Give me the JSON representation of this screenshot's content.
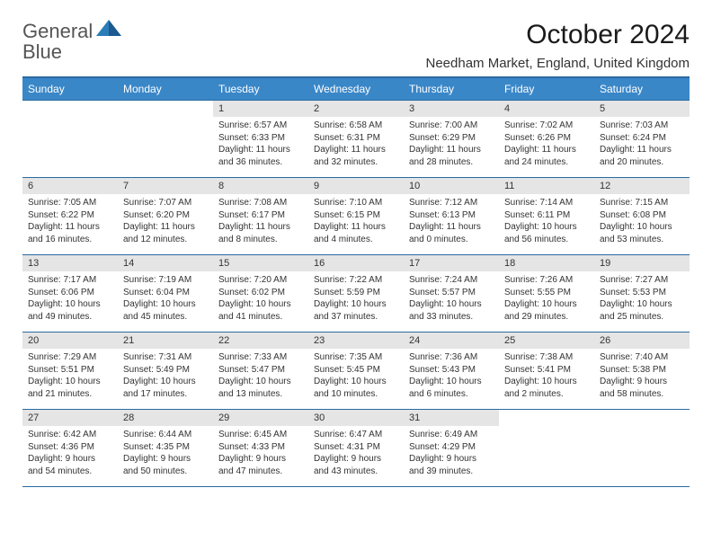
{
  "logo": {
    "word1": "General",
    "word2": "Blue"
  },
  "title": "October 2024",
  "subtitle": "Needham Market, England, United Kingdom",
  "colors": {
    "header_bg": "#3a87c8",
    "header_text": "#ffffff",
    "border": "#2a6aa0",
    "daynum_bg": "#e5e5e5",
    "body_text": "#333333",
    "logo_gray": "#555555",
    "logo_blue": "#2a7db8"
  },
  "dayNames": [
    "Sunday",
    "Monday",
    "Tuesday",
    "Wednesday",
    "Thursday",
    "Friday",
    "Saturday"
  ],
  "weeks": [
    [
      null,
      null,
      {
        "n": "1",
        "sr": "6:57 AM",
        "ss": "6:33 PM",
        "dl": "11 hours and 36 minutes."
      },
      {
        "n": "2",
        "sr": "6:58 AM",
        "ss": "6:31 PM",
        "dl": "11 hours and 32 minutes."
      },
      {
        "n": "3",
        "sr": "7:00 AM",
        "ss": "6:29 PM",
        "dl": "11 hours and 28 minutes."
      },
      {
        "n": "4",
        "sr": "7:02 AM",
        "ss": "6:26 PM",
        "dl": "11 hours and 24 minutes."
      },
      {
        "n": "5",
        "sr": "7:03 AM",
        "ss": "6:24 PM",
        "dl": "11 hours and 20 minutes."
      }
    ],
    [
      {
        "n": "6",
        "sr": "7:05 AM",
        "ss": "6:22 PM",
        "dl": "11 hours and 16 minutes."
      },
      {
        "n": "7",
        "sr": "7:07 AM",
        "ss": "6:20 PM",
        "dl": "11 hours and 12 minutes."
      },
      {
        "n": "8",
        "sr": "7:08 AM",
        "ss": "6:17 PM",
        "dl": "11 hours and 8 minutes."
      },
      {
        "n": "9",
        "sr": "7:10 AM",
        "ss": "6:15 PM",
        "dl": "11 hours and 4 minutes."
      },
      {
        "n": "10",
        "sr": "7:12 AM",
        "ss": "6:13 PM",
        "dl": "11 hours and 0 minutes."
      },
      {
        "n": "11",
        "sr": "7:14 AM",
        "ss": "6:11 PM",
        "dl": "10 hours and 56 minutes."
      },
      {
        "n": "12",
        "sr": "7:15 AM",
        "ss": "6:08 PM",
        "dl": "10 hours and 53 minutes."
      }
    ],
    [
      {
        "n": "13",
        "sr": "7:17 AM",
        "ss": "6:06 PM",
        "dl": "10 hours and 49 minutes."
      },
      {
        "n": "14",
        "sr": "7:19 AM",
        "ss": "6:04 PM",
        "dl": "10 hours and 45 minutes."
      },
      {
        "n": "15",
        "sr": "7:20 AM",
        "ss": "6:02 PM",
        "dl": "10 hours and 41 minutes."
      },
      {
        "n": "16",
        "sr": "7:22 AM",
        "ss": "5:59 PM",
        "dl": "10 hours and 37 minutes."
      },
      {
        "n": "17",
        "sr": "7:24 AM",
        "ss": "5:57 PM",
        "dl": "10 hours and 33 minutes."
      },
      {
        "n": "18",
        "sr": "7:26 AM",
        "ss": "5:55 PM",
        "dl": "10 hours and 29 minutes."
      },
      {
        "n": "19",
        "sr": "7:27 AM",
        "ss": "5:53 PM",
        "dl": "10 hours and 25 minutes."
      }
    ],
    [
      {
        "n": "20",
        "sr": "7:29 AM",
        "ss": "5:51 PM",
        "dl": "10 hours and 21 minutes."
      },
      {
        "n": "21",
        "sr": "7:31 AM",
        "ss": "5:49 PM",
        "dl": "10 hours and 17 minutes."
      },
      {
        "n": "22",
        "sr": "7:33 AM",
        "ss": "5:47 PM",
        "dl": "10 hours and 13 minutes."
      },
      {
        "n": "23",
        "sr": "7:35 AM",
        "ss": "5:45 PM",
        "dl": "10 hours and 10 minutes."
      },
      {
        "n": "24",
        "sr": "7:36 AM",
        "ss": "5:43 PM",
        "dl": "10 hours and 6 minutes."
      },
      {
        "n": "25",
        "sr": "7:38 AM",
        "ss": "5:41 PM",
        "dl": "10 hours and 2 minutes."
      },
      {
        "n": "26",
        "sr": "7:40 AM",
        "ss": "5:38 PM",
        "dl": "9 hours and 58 minutes."
      }
    ],
    [
      {
        "n": "27",
        "sr": "6:42 AM",
        "ss": "4:36 PM",
        "dl": "9 hours and 54 minutes."
      },
      {
        "n": "28",
        "sr": "6:44 AM",
        "ss": "4:35 PM",
        "dl": "9 hours and 50 minutes."
      },
      {
        "n": "29",
        "sr": "6:45 AM",
        "ss": "4:33 PM",
        "dl": "9 hours and 47 minutes."
      },
      {
        "n": "30",
        "sr": "6:47 AM",
        "ss": "4:31 PM",
        "dl": "9 hours and 43 minutes."
      },
      {
        "n": "31",
        "sr": "6:49 AM",
        "ss": "4:29 PM",
        "dl": "9 hours and 39 minutes."
      },
      null,
      null
    ]
  ]
}
